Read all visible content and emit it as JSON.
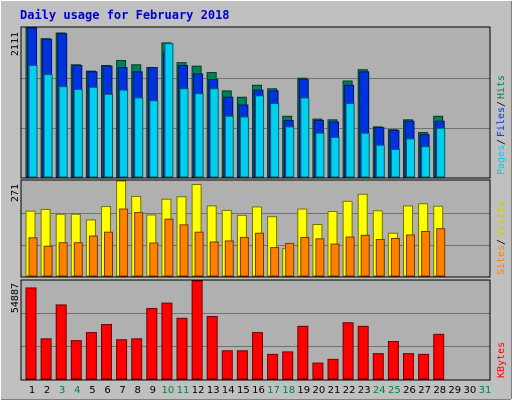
{
  "title": "Daily usage for February 2018",
  "colors": {
    "background": "#c0c0c0",
    "plot_bg": "#b0b0b0",
    "title": "#0000cc",
    "hits": "#00805a",
    "files": "#0033dd",
    "pages": "#00d0ee",
    "visits": "#ffff00",
    "sites": "#ff8000",
    "kbytes": "#ff0000",
    "weekday_label": "#000000",
    "weekend_label": "#008040"
  },
  "chart_data": [
    {
      "type": "bar",
      "panel": "hits-files-pages",
      "max_label": "2111",
      "ylim": [
        0,
        2111
      ],
      "legend": [
        "Pages",
        "Files",
        "Hits"
      ],
      "categories": [
        "1",
        "2",
        "3",
        "4",
        "5",
        "6",
        "7",
        "8",
        "9",
        "10",
        "11",
        "12",
        "13",
        "14",
        "15",
        "16",
        "17",
        "18",
        "19",
        "20",
        "21",
        "22",
        "23",
        "24",
        "25",
        "26",
        "27",
        "28",
        "29",
        "30",
        "31"
      ],
      "series": [
        {
          "name": "Hits",
          "values": [
            2111,
            1960,
            2040,
            1590,
            1500,
            1580,
            1650,
            1590,
            1550,
            1900,
            1620,
            1570,
            1480,
            1220,
            1130,
            1300,
            1250,
            860,
            1400,
            820,
            810,
            1360,
            1520,
            710,
            670,
            810,
            630,
            860,
            0,
            0,
            0
          ]
        },
        {
          "name": "Files",
          "values": [
            2111,
            1950,
            2030,
            1580,
            1490,
            1570,
            1550,
            1490,
            1550,
            1770,
            1580,
            1460,
            1380,
            1130,
            1020,
            1230,
            1220,
            800,
            1380,
            800,
            780,
            1300,
            1490,
            700,
            660,
            790,
            600,
            790,
            0,
            0,
            0
          ]
        },
        {
          "name": "Pages",
          "values": [
            1580,
            1450,
            1280,
            1240,
            1270,
            1170,
            1230,
            1120,
            1080,
            1890,
            1250,
            1180,
            1250,
            860,
            850,
            1150,
            1040,
            710,
            1120,
            620,
            560,
            1040,
            620,
            450,
            390,
            540,
            430,
            690,
            0,
            0,
            0
          ]
        }
      ]
    },
    {
      "type": "bar",
      "panel": "visits-sites",
      "max_label": "271",
      "ylim": [
        0,
        271
      ],
      "legend": [
        "Sites",
        "Visits"
      ],
      "categories": [
        "1",
        "2",
        "3",
        "4",
        "5",
        "6",
        "7",
        "8",
        "9",
        "10",
        "11",
        "12",
        "13",
        "14",
        "15",
        "16",
        "17",
        "18",
        "19",
        "20",
        "21",
        "22",
        "23",
        "24",
        "25",
        "26",
        "27",
        "28",
        "29",
        "30",
        "31"
      ],
      "series": [
        {
          "name": "Visits",
          "values": [
            185,
            190,
            176,
            176,
            160,
            198,
            271,
            227,
            174,
            219,
            226,
            261,
            200,
            187,
            173,
            197,
            169,
            78,
            191,
            147,
            184,
            213,
            233,
            186,
            122,
            200,
            206,
            199,
            0,
            0,
            0
          ]
        },
        {
          "name": "Sites",
          "values": [
            109,
            85,
            95,
            95,
            114,
            125,
            191,
            181,
            94,
            162,
            146,
            125,
            97,
            100,
            110,
            122,
            81,
            93,
            110,
            106,
            91,
            111,
            116,
            104,
            107,
            117,
            127,
            135,
            0,
            0,
            0
          ]
        }
      ]
    },
    {
      "type": "bar",
      "panel": "kbytes",
      "max_label": "54887",
      "ylim": [
        0,
        54887
      ],
      "legend": [
        "KBytes"
      ],
      "categories": [
        "1",
        "2",
        "3",
        "4",
        "5",
        "6",
        "7",
        "8",
        "9",
        "10",
        "11",
        "12",
        "13",
        "14",
        "15",
        "16",
        "17",
        "18",
        "19",
        "20",
        "21",
        "22",
        "23",
        "24",
        "25",
        "26",
        "27",
        "28",
        "29",
        "30",
        "31"
      ],
      "series": [
        {
          "name": "KBytes",
          "values": [
            51000,
            22500,
            41500,
            21500,
            26000,
            30500,
            22000,
            22500,
            39500,
            42500,
            34000,
            54887,
            35000,
            15800,
            15800,
            26000,
            13800,
            15200,
            29500,
            8900,
            11000,
            31500,
            29500,
            14200,
            21000,
            14200,
            13800,
            25000,
            0,
            0,
            0
          ]
        }
      ]
    }
  ],
  "x_labels": [
    {
      "label": "1",
      "weekend": false
    },
    {
      "label": "2",
      "weekend": false
    },
    {
      "label": "3",
      "weekend": true
    },
    {
      "label": "4",
      "weekend": true
    },
    {
      "label": "5",
      "weekend": false
    },
    {
      "label": "6",
      "weekend": false
    },
    {
      "label": "7",
      "weekend": false
    },
    {
      "label": "8",
      "weekend": false
    },
    {
      "label": "9",
      "weekend": false
    },
    {
      "label": "10",
      "weekend": true
    },
    {
      "label": "11",
      "weekend": true
    },
    {
      "label": "12",
      "weekend": false
    },
    {
      "label": "13",
      "weekend": false
    },
    {
      "label": "14",
      "weekend": false
    },
    {
      "label": "15",
      "weekend": false
    },
    {
      "label": "16",
      "weekend": false
    },
    {
      "label": "17",
      "weekend": true
    },
    {
      "label": "18",
      "weekend": true
    },
    {
      "label": "19",
      "weekend": false
    },
    {
      "label": "20",
      "weekend": false
    },
    {
      "label": "21",
      "weekend": false
    },
    {
      "label": "22",
      "weekend": false
    },
    {
      "label": "23",
      "weekend": false
    },
    {
      "label": "24",
      "weekend": true
    },
    {
      "label": "25",
      "weekend": true
    },
    {
      "label": "26",
      "weekend": false
    },
    {
      "label": "27",
      "weekend": false
    },
    {
      "label": "28",
      "weekend": false
    },
    {
      "label": "29",
      "weekend": false
    },
    {
      "label": "30",
      "weekend": false
    },
    {
      "label": "31",
      "weekend": true
    }
  ]
}
